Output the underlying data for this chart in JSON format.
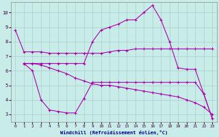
{
  "xlabel": "Windchill (Refroidissement éolien,°C)",
  "background_color": "#c8ece8",
  "grid_color": "#aacccc",
  "line_color": "#aa00aa",
  "xlim": [
    -0.5,
    23.5
  ],
  "ylim": [
    2.5,
    10.7
  ],
  "xticks": [
    0,
    1,
    2,
    3,
    4,
    5,
    6,
    7,
    8,
    9,
    10,
    11,
    12,
    13,
    14,
    15,
    16,
    17,
    18,
    19,
    20,
    21,
    22,
    23
  ],
  "yticks": [
    3,
    4,
    5,
    6,
    7,
    8,
    9,
    10
  ],
  "line1_x": [
    0,
    1,
    2,
    3,
    4,
    5,
    6,
    7,
    8,
    9,
    10,
    11,
    12,
    13,
    14,
    15,
    16,
    17,
    18,
    19,
    20,
    21,
    22,
    23
  ],
  "line1_y": [
    8.8,
    7.3,
    7.3,
    7.3,
    7.2,
    7.2,
    7.2,
    7.2,
    7.2,
    7.2,
    7.2,
    7.3,
    7.4,
    7.4,
    7.5,
    7.5,
    7.5,
    7.5,
    7.5,
    7.5,
    7.5,
    7.5,
    7.5,
    7.5
  ],
  "line2_x": [
    1,
    2,
    3,
    4,
    5,
    6,
    7,
    8,
    9,
    10,
    11,
    12,
    13,
    14,
    15,
    16,
    17,
    18,
    19,
    20,
    21,
    22,
    23
  ],
  "line2_y": [
    6.5,
    6.5,
    6.4,
    6.2,
    6.0,
    5.8,
    5.5,
    5.3,
    5.1,
    5.0,
    5.0,
    4.9,
    4.8,
    4.7,
    4.6,
    4.5,
    4.4,
    4.3,
    4.2,
    4.0,
    3.8,
    3.5,
    3.0
  ],
  "line3_x": [
    1,
    2,
    3,
    4,
    5,
    6,
    7,
    8,
    9,
    10,
    11,
    12,
    13,
    14,
    15,
    16,
    17,
    18,
    19,
    20,
    21,
    22,
    23
  ],
  "line3_y": [
    6.5,
    6.0,
    4.0,
    3.3,
    3.2,
    3.1,
    3.1,
    4.1,
    5.2,
    5.2,
    5.2,
    5.2,
    5.2,
    5.2,
    5.2,
    5.2,
    5.2,
    5.2,
    5.2,
    5.2,
    5.2,
    4.4,
    2.7
  ],
  "line4_x": [
    1,
    2,
    3,
    4,
    5,
    6,
    7,
    8,
    9,
    10,
    11,
    12,
    13,
    14,
    15,
    16,
    17,
    18,
    19,
    20,
    21,
    22,
    23
  ],
  "line4_y": [
    6.5,
    6.5,
    6.5,
    6.5,
    6.5,
    6.5,
    6.5,
    6.5,
    8.0,
    8.8,
    9.0,
    9.2,
    9.5,
    9.5,
    10.0,
    10.5,
    9.5,
    8.0,
    6.2,
    6.1,
    6.1,
    4.4,
    2.7
  ]
}
